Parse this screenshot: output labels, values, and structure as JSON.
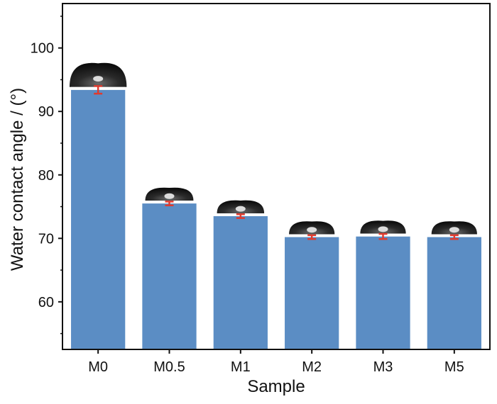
{
  "chart_data": {
    "type": "bar",
    "title": "",
    "xlabel": "Sample",
    "ylabel": "Water contact angle / (°)",
    "categories": [
      "M0",
      "M0.5",
      "M1",
      "M2",
      "M3",
      "M5"
    ],
    "values": [
      93.4,
      75.5,
      73.5,
      70.2,
      70.3,
      70.2
    ],
    "errors": [
      0.6,
      0.3,
      0.3,
      0.3,
      0.4,
      0.3
    ],
    "ylim": [
      52.5,
      107
    ],
    "yticks": [
      60,
      70,
      80,
      90,
      100
    ],
    "grid": false,
    "bar_color": "#5b8dc4",
    "error_color": "#e03a2e",
    "droplet_images": true
  }
}
